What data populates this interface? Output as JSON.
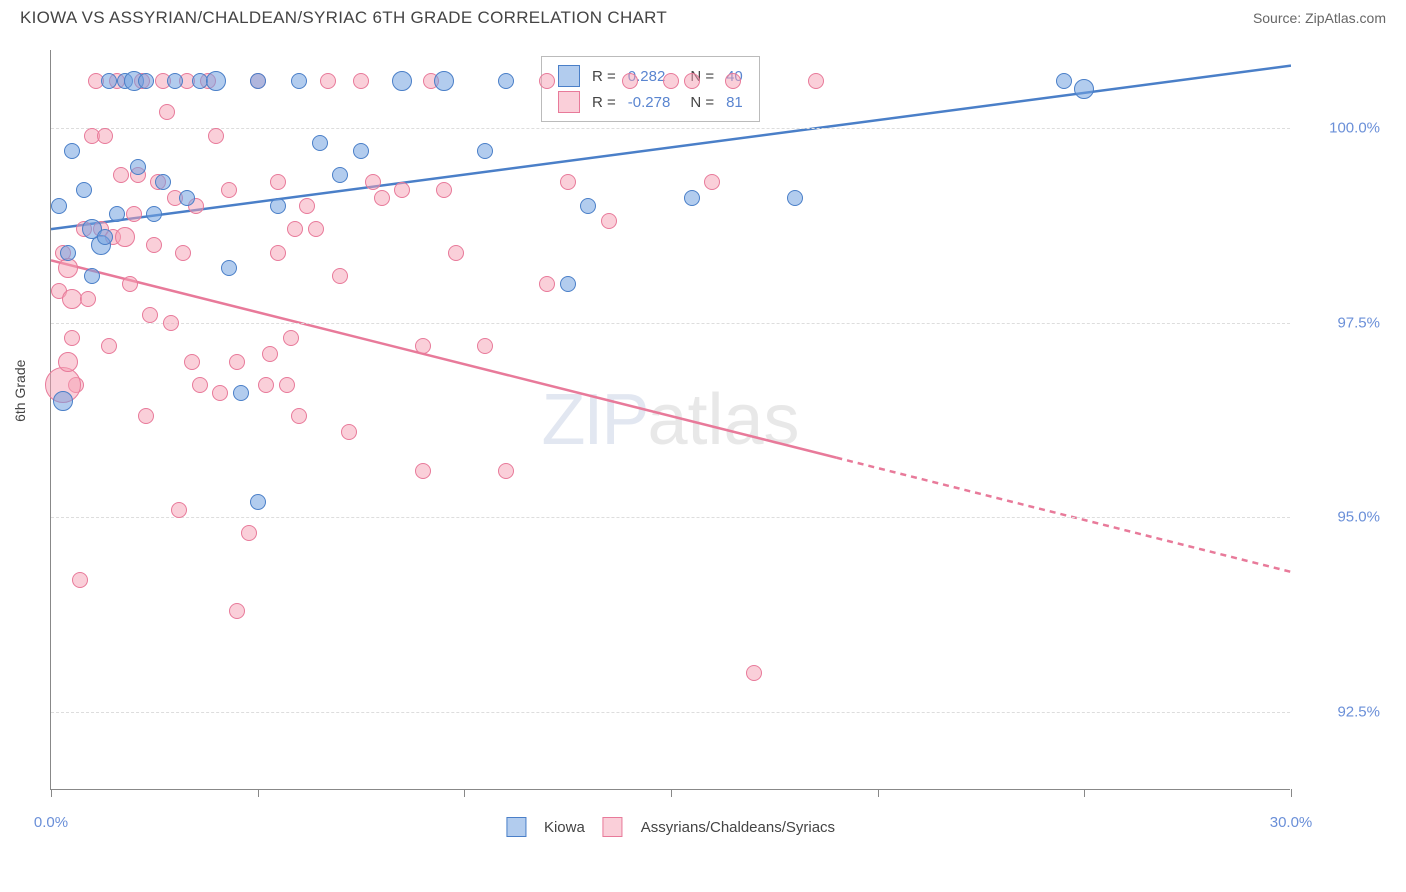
{
  "header": {
    "title": "KIOWA VS ASSYRIAN/CHALDEAN/SYRIAC 6TH GRADE CORRELATION CHART",
    "source": "Source: ZipAtlas.com"
  },
  "chart": {
    "type": "scatter",
    "y_axis_label": "6th Grade",
    "xlim": [
      0,
      30
    ],
    "ylim": [
      91.5,
      101.0
    ],
    "y_ticks": [
      92.5,
      95.0,
      97.5,
      100.0
    ],
    "y_tick_labels": [
      "92.5%",
      "95.0%",
      "97.5%",
      "100.0%"
    ],
    "x_ticks": [
      0,
      5,
      10,
      15,
      20,
      25,
      30
    ],
    "x_tick_labels": {
      "start": "0.0%",
      "end": "30.0%"
    },
    "background_color": "#ffffff",
    "grid_color": "#dddddd",
    "axis_color": "#888888",
    "series": {
      "kiowa": {
        "label": "Kiowa",
        "color_fill": "rgba(115,163,224,0.55)",
        "color_stroke": "#4a7fc8",
        "R": "0.282",
        "N": "40",
        "trend": {
          "x1": 0,
          "y1": 98.7,
          "x2": 30,
          "y2": 100.8,
          "solid_until_x": 30
        },
        "points": [
          {
            "x": 0.5,
            "y": 99.7,
            "r": 8
          },
          {
            "x": 0.8,
            "y": 99.2,
            "r": 8
          },
          {
            "x": 1.0,
            "y": 98.1,
            "r": 8
          },
          {
            "x": 1.2,
            "y": 98.5,
            "r": 10
          },
          {
            "x": 1.4,
            "y": 100.6,
            "r": 8
          },
          {
            "x": 1.6,
            "y": 98.9,
            "r": 8
          },
          {
            "x": 1.8,
            "y": 100.6,
            "r": 8
          },
          {
            "x": 1.0,
            "y": 98.7,
            "r": 10
          },
          {
            "x": 1.3,
            "y": 98.6,
            "r": 8
          },
          {
            "x": 2.0,
            "y": 100.6,
            "r": 10
          },
          {
            "x": 2.3,
            "y": 100.6,
            "r": 8
          },
          {
            "x": 2.5,
            "y": 98.9,
            "r": 8
          },
          {
            "x": 2.1,
            "y": 99.5,
            "r": 8
          },
          {
            "x": 2.7,
            "y": 99.3,
            "r": 8
          },
          {
            "x": 3.0,
            "y": 100.6,
            "r": 8
          },
          {
            "x": 3.3,
            "y": 99.1,
            "r": 8
          },
          {
            "x": 3.6,
            "y": 100.6,
            "r": 8
          },
          {
            "x": 4.0,
            "y": 100.6,
            "r": 10
          },
          {
            "x": 4.3,
            "y": 98.2,
            "r": 8
          },
          {
            "x": 4.6,
            "y": 96.6,
            "r": 8
          },
          {
            "x": 5.0,
            "y": 100.6,
            "r": 8
          },
          {
            "x": 5.0,
            "y": 95.2,
            "r": 8
          },
          {
            "x": 5.5,
            "y": 99.0,
            "r": 8
          },
          {
            "x": 6.0,
            "y": 100.6,
            "r": 8
          },
          {
            "x": 6.5,
            "y": 99.8,
            "r": 8
          },
          {
            "x": 7.0,
            "y": 99.4,
            "r": 8
          },
          {
            "x": 7.5,
            "y": 99.7,
            "r": 8
          },
          {
            "x": 8.5,
            "y": 100.6,
            "r": 10
          },
          {
            "x": 9.5,
            "y": 100.6,
            "r": 10
          },
          {
            "x": 10.5,
            "y": 99.7,
            "r": 8
          },
          {
            "x": 11.0,
            "y": 100.6,
            "r": 8
          },
          {
            "x": 12.5,
            "y": 98.0,
            "r": 8
          },
          {
            "x": 13.0,
            "y": 99.0,
            "r": 8
          },
          {
            "x": 15.5,
            "y": 99.1,
            "r": 8
          },
          {
            "x": 18.0,
            "y": 99.1,
            "r": 8
          },
          {
            "x": 24.5,
            "y": 100.6,
            "r": 8
          },
          {
            "x": 25.0,
            "y": 100.5,
            "r": 10
          },
          {
            "x": 0.3,
            "y": 96.5,
            "r": 10
          },
          {
            "x": 0.4,
            "y": 98.4,
            "r": 8
          },
          {
            "x": 0.2,
            "y": 99.0,
            "r": 8
          }
        ]
      },
      "assyrian": {
        "label": "Assyrians/Chaldeans/Syriacs",
        "color_fill": "rgba(245,160,180,0.5)",
        "color_stroke": "#e87a9a",
        "R": "-0.278",
        "N": "81",
        "trend": {
          "x1": 0,
          "y1": 98.3,
          "x2": 30,
          "y2": 94.3,
          "solid_until_x": 19
        },
        "points": [
          {
            "x": 0.2,
            "y": 97.9,
            "r": 8
          },
          {
            "x": 0.3,
            "y": 98.4,
            "r": 8
          },
          {
            "x": 0.4,
            "y": 98.2,
            "r": 10
          },
          {
            "x": 0.5,
            "y": 97.3,
            "r": 8
          },
          {
            "x": 0.5,
            "y": 97.8,
            "r": 10
          },
          {
            "x": 0.6,
            "y": 96.7,
            "r": 8
          },
          {
            "x": 0.3,
            "y": 96.7,
            "r": 18
          },
          {
            "x": 0.7,
            "y": 94.2,
            "r": 8
          },
          {
            "x": 0.8,
            "y": 98.7,
            "r": 8
          },
          {
            "x": 0.9,
            "y": 97.8,
            "r": 8
          },
          {
            "x": 1.0,
            "y": 99.9,
            "r": 8
          },
          {
            "x": 1.1,
            "y": 100.6,
            "r": 8
          },
          {
            "x": 1.2,
            "y": 98.7,
            "r": 8
          },
          {
            "x": 1.3,
            "y": 99.9,
            "r": 8
          },
          {
            "x": 1.4,
            "y": 97.2,
            "r": 8
          },
          {
            "x": 1.5,
            "y": 98.6,
            "r": 8
          },
          {
            "x": 1.6,
            "y": 100.6,
            "r": 8
          },
          {
            "x": 1.7,
            "y": 99.4,
            "r": 8
          },
          {
            "x": 1.8,
            "y": 98.6,
            "r": 10
          },
          {
            "x": 1.9,
            "y": 98.0,
            "r": 8
          },
          {
            "x": 2.0,
            "y": 98.9,
            "r": 8
          },
          {
            "x": 2.1,
            "y": 99.4,
            "r": 8
          },
          {
            "x": 2.2,
            "y": 100.6,
            "r": 8
          },
          {
            "x": 2.3,
            "y": 96.3,
            "r": 8
          },
          {
            "x": 2.4,
            "y": 97.6,
            "r": 8
          },
          {
            "x": 2.5,
            "y": 98.5,
            "r": 8
          },
          {
            "x": 2.6,
            "y": 99.3,
            "r": 8
          },
          {
            "x": 2.7,
            "y": 100.6,
            "r": 8
          },
          {
            "x": 2.8,
            "y": 100.2,
            "r": 8
          },
          {
            "x": 2.9,
            "y": 97.5,
            "r": 8
          },
          {
            "x": 3.0,
            "y": 99.1,
            "r": 8
          },
          {
            "x": 3.1,
            "y": 95.1,
            "r": 8
          },
          {
            "x": 3.2,
            "y": 98.4,
            "r": 8
          },
          {
            "x": 3.3,
            "y": 100.6,
            "r": 8
          },
          {
            "x": 3.4,
            "y": 97.0,
            "r": 8
          },
          {
            "x": 3.5,
            "y": 99.0,
            "r": 8
          },
          {
            "x": 3.6,
            "y": 96.7,
            "r": 8
          },
          {
            "x": 3.8,
            "y": 100.6,
            "r": 8
          },
          {
            "x": 4.0,
            "y": 99.9,
            "r": 8
          },
          {
            "x": 4.1,
            "y": 96.6,
            "r": 8
          },
          {
            "x": 4.3,
            "y": 99.2,
            "r": 8
          },
          {
            "x": 4.5,
            "y": 93.8,
            "r": 8
          },
          {
            "x": 4.5,
            "y": 97.0,
            "r": 8
          },
          {
            "x": 4.8,
            "y": 94.8,
            "r": 8
          },
          {
            "x": 5.0,
            "y": 100.6,
            "r": 8
          },
          {
            "x": 5.2,
            "y": 96.7,
            "r": 8
          },
          {
            "x": 5.3,
            "y": 97.1,
            "r": 8
          },
          {
            "x": 5.5,
            "y": 98.4,
            "r": 8
          },
          {
            "x": 5.5,
            "y": 99.3,
            "r": 8
          },
          {
            "x": 5.7,
            "y": 96.7,
            "r": 8
          },
          {
            "x": 5.8,
            "y": 97.3,
            "r": 8
          },
          {
            "x": 5.9,
            "y": 98.7,
            "r": 8
          },
          {
            "x": 6.0,
            "y": 96.3,
            "r": 8
          },
          {
            "x": 6.2,
            "y": 99.0,
            "r": 8
          },
          {
            "x": 6.4,
            "y": 98.7,
            "r": 8
          },
          {
            "x": 6.7,
            "y": 100.6,
            "r": 8
          },
          {
            "x": 7.0,
            "y": 98.1,
            "r": 8
          },
          {
            "x": 7.2,
            "y": 96.1,
            "r": 8
          },
          {
            "x": 7.5,
            "y": 100.6,
            "r": 8
          },
          {
            "x": 7.8,
            "y": 99.3,
            "r": 8
          },
          {
            "x": 8.0,
            "y": 99.1,
            "r": 8
          },
          {
            "x": 8.5,
            "y": 99.2,
            "r": 8
          },
          {
            "x": 9.0,
            "y": 97.2,
            "r": 8
          },
          {
            "x": 9.0,
            "y": 95.6,
            "r": 8
          },
          {
            "x": 9.2,
            "y": 100.6,
            "r": 8
          },
          {
            "x": 9.5,
            "y": 99.2,
            "r": 8
          },
          {
            "x": 9.8,
            "y": 98.4,
            "r": 8
          },
          {
            "x": 10.5,
            "y": 97.2,
            "r": 8
          },
          {
            "x": 11.0,
            "y": 95.6,
            "r": 8
          },
          {
            "x": 12.0,
            "y": 98.0,
            "r": 8
          },
          {
            "x": 12.0,
            "y": 100.6,
            "r": 8
          },
          {
            "x": 12.5,
            "y": 99.3,
            "r": 8
          },
          {
            "x": 13.5,
            "y": 98.8,
            "r": 8
          },
          {
            "x": 14.0,
            "y": 100.6,
            "r": 8
          },
          {
            "x": 15.0,
            "y": 100.6,
            "r": 8
          },
          {
            "x": 15.5,
            "y": 100.6,
            "r": 8
          },
          {
            "x": 16.0,
            "y": 99.3,
            "r": 8
          },
          {
            "x": 16.5,
            "y": 100.6,
            "r": 8
          },
          {
            "x": 17.0,
            "y": 93.0,
            "r": 8
          },
          {
            "x": 18.5,
            "y": 100.6,
            "r": 8
          },
          {
            "x": 0.4,
            "y": 97.0,
            "r": 10
          }
        ]
      }
    },
    "watermark": {
      "zip": "ZIP",
      "atlas": "atlas"
    },
    "bottom_legend": {
      "series1": "Kiowa",
      "series2": "Assyrians/Chaldeans/Syriacs"
    }
  }
}
